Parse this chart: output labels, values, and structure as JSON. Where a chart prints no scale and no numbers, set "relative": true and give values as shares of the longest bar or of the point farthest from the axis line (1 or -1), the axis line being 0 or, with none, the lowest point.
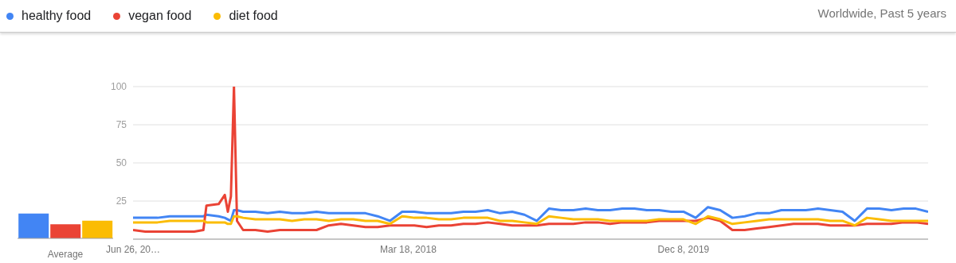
{
  "chart_data": [
    {
      "type": "line",
      "legend": "top left",
      "annotations": [
        "Worldwide, Past 5 years"
      ],
      "grid": "y",
      "marker": "none",
      "line_style": "solid",
      "x": [
        "2016-06-26",
        "2016-07-24",
        "2016-08-21",
        "2016-09-18",
        "2016-10-16",
        "2016-11-13",
        "2016-12-04",
        "2016-12-11",
        "2017-01-08",
        "2017-01-22",
        "2017-01-29",
        "2017-02-05",
        "2017-02-12",
        "2017-02-19",
        "2017-03-05",
        "2017-04-02",
        "2017-04-30",
        "2017-05-28",
        "2017-06-25",
        "2017-07-23",
        "2017-08-20",
        "2017-09-17",
        "2017-10-15",
        "2017-11-12",
        "2017-12-10",
        "2018-01-07",
        "2018-02-04",
        "2018-03-04",
        "2018-04-01",
        "2018-04-29",
        "2018-05-27",
        "2018-06-24",
        "2018-07-22",
        "2018-08-19",
        "2018-09-16",
        "2018-10-14",
        "2018-11-11",
        "2018-12-09",
        "2019-01-06",
        "2019-02-03",
        "2019-03-03",
        "2019-03-31",
        "2019-04-28",
        "2019-05-26",
        "2019-06-23",
        "2019-07-21",
        "2019-08-18",
        "2019-09-15",
        "2019-10-13",
        "2019-11-10",
        "2019-12-08",
        "2020-01-05",
        "2020-02-02",
        "2020-03-01",
        "2020-03-29",
        "2020-04-26",
        "2020-05-24",
        "2020-06-21",
        "2020-07-19",
        "2020-08-16",
        "2020-09-13",
        "2020-10-11",
        "2020-11-08",
        "2020-12-06",
        "2021-01-03",
        "2021-01-31",
        "2021-02-28",
        "2021-03-28",
        "2021-04-25",
        "2021-05-23",
        "2021-06-20"
      ],
      "xlim": [
        "2016-06-26",
        "2021-06-20"
      ],
      "xticks": [
        {
          "value": "2016-06-26",
          "label": "Jun 26, 20…"
        },
        {
          "value": "2018-03-18",
          "label": "Mar 18, 2018"
        },
        {
          "value": "2019-12-08",
          "label": "Dec 8, 2019"
        }
      ],
      "ylim": [
        0,
        100
      ],
      "yticks": [
        {
          "value": 0,
          "label": null
        },
        25,
        50,
        75,
        100
      ],
      "series": [
        {
          "name": "healthy food",
          "color": "#4285f4",
          "values": [
            14,
            14,
            14,
            15,
            15,
            15,
            15,
            16,
            15,
            14,
            13,
            12,
            19,
            19,
            18,
            18,
            17,
            18,
            17,
            17,
            18,
            17,
            17,
            17,
            17,
            15,
            12,
            18,
            18,
            17,
            17,
            17,
            18,
            18,
            19,
            17,
            18,
            16,
            12,
            20,
            19,
            19,
            20,
            19,
            19,
            20,
            20,
            19,
            19,
            18,
            18,
            14,
            21,
            19,
            14,
            15,
            17,
            17,
            19,
            19,
            19,
            20,
            19,
            18,
            12,
            20,
            20,
            19,
            20,
            20,
            18
          ]
        },
        {
          "name": "vegan food",
          "color": "#ea4335",
          "values": [
            6,
            5,
            5,
            5,
            5,
            5,
            6,
            22,
            23,
            29,
            18,
            28,
            100,
            12,
            6,
            6,
            5,
            6,
            6,
            6,
            6,
            9,
            10,
            9,
            8,
            8,
            9,
            9,
            9,
            8,
            9,
            9,
            10,
            10,
            11,
            10,
            9,
            9,
            9,
            10,
            10,
            10,
            11,
            11,
            10,
            11,
            11,
            11,
            12,
            12,
            12,
            12,
            14,
            12,
            6,
            6,
            7,
            8,
            9,
            10,
            10,
            10,
            9,
            9,
            9,
            10,
            10,
            10,
            11,
            11,
            10
          ]
        },
        {
          "name": "diet food",
          "color": "#fbbc04",
          "values": [
            11,
            11,
            11,
            12,
            12,
            12,
            12,
            11,
            11,
            11,
            10,
            10,
            15,
            15,
            14,
            13,
            13,
            13,
            12,
            13,
            13,
            12,
            13,
            13,
            12,
            12,
            10,
            15,
            14,
            14,
            13,
            13,
            14,
            14,
            14,
            12,
            12,
            11,
            10,
            15,
            14,
            13,
            13,
            13,
            12,
            12,
            12,
            12,
            13,
            13,
            13,
            10,
            15,
            13,
            10,
            11,
            12,
            13,
            13,
            13,
            13,
            13,
            12,
            12,
            9,
            14,
            13,
            12,
            12,
            12,
            12
          ]
        }
      ]
    },
    {
      "type": "bar",
      "relative": true,
      "xlabel": "Average",
      "categories": [
        null,
        null,
        null
      ],
      "values": [
        1,
        0.57,
        0.71
      ],
      "colors": [
        "#4285f4",
        "#ea4335",
        "#fbbc04"
      ]
    }
  ]
}
